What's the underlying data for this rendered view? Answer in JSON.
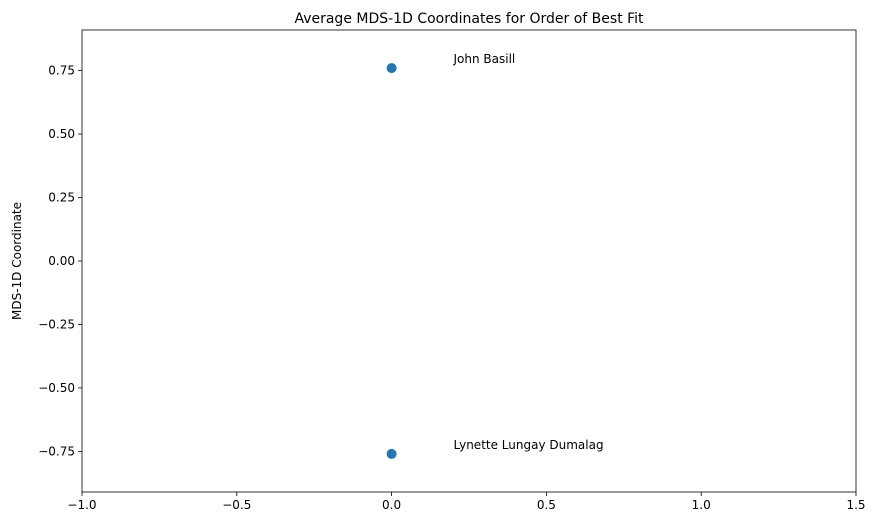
{
  "chart_data": {
    "type": "scatter",
    "title": "Average MDS-1D Coordinates for Order of Best Fit",
    "xlabel": "",
    "ylabel": "MDS-1D Coordinate",
    "xlim": [
      -1.0,
      1.5
    ],
    "ylim": [
      -0.91,
      0.91
    ],
    "xticks": [
      -1.0,
      -0.5,
      0.0,
      0.5,
      1.0,
      1.5
    ],
    "xtick_labels": [
      "−1.0",
      "−0.5",
      "0.0",
      "0.5",
      "1.0",
      "1.5"
    ],
    "yticks": [
      0.75,
      0.5,
      0.25,
      0.0,
      -0.25,
      -0.5,
      -0.75
    ],
    "ytick_labels": [
      "0.75",
      "0.50",
      "0.25",
      "0.00",
      "−0.25",
      "−0.50",
      "−0.75"
    ],
    "grid": false,
    "marker_color": "#1f77b4",
    "points": [
      {
        "x": 0.0,
        "y": 0.76
      },
      {
        "x": 0.0,
        "y": -0.76
      }
    ],
    "annotations": [
      {
        "text": "John Basill",
        "x": 0.2,
        "y": 0.78
      },
      {
        "text": "Lynette Lungay Dumalag",
        "x": 0.2,
        "y": -0.74
      }
    ]
  }
}
